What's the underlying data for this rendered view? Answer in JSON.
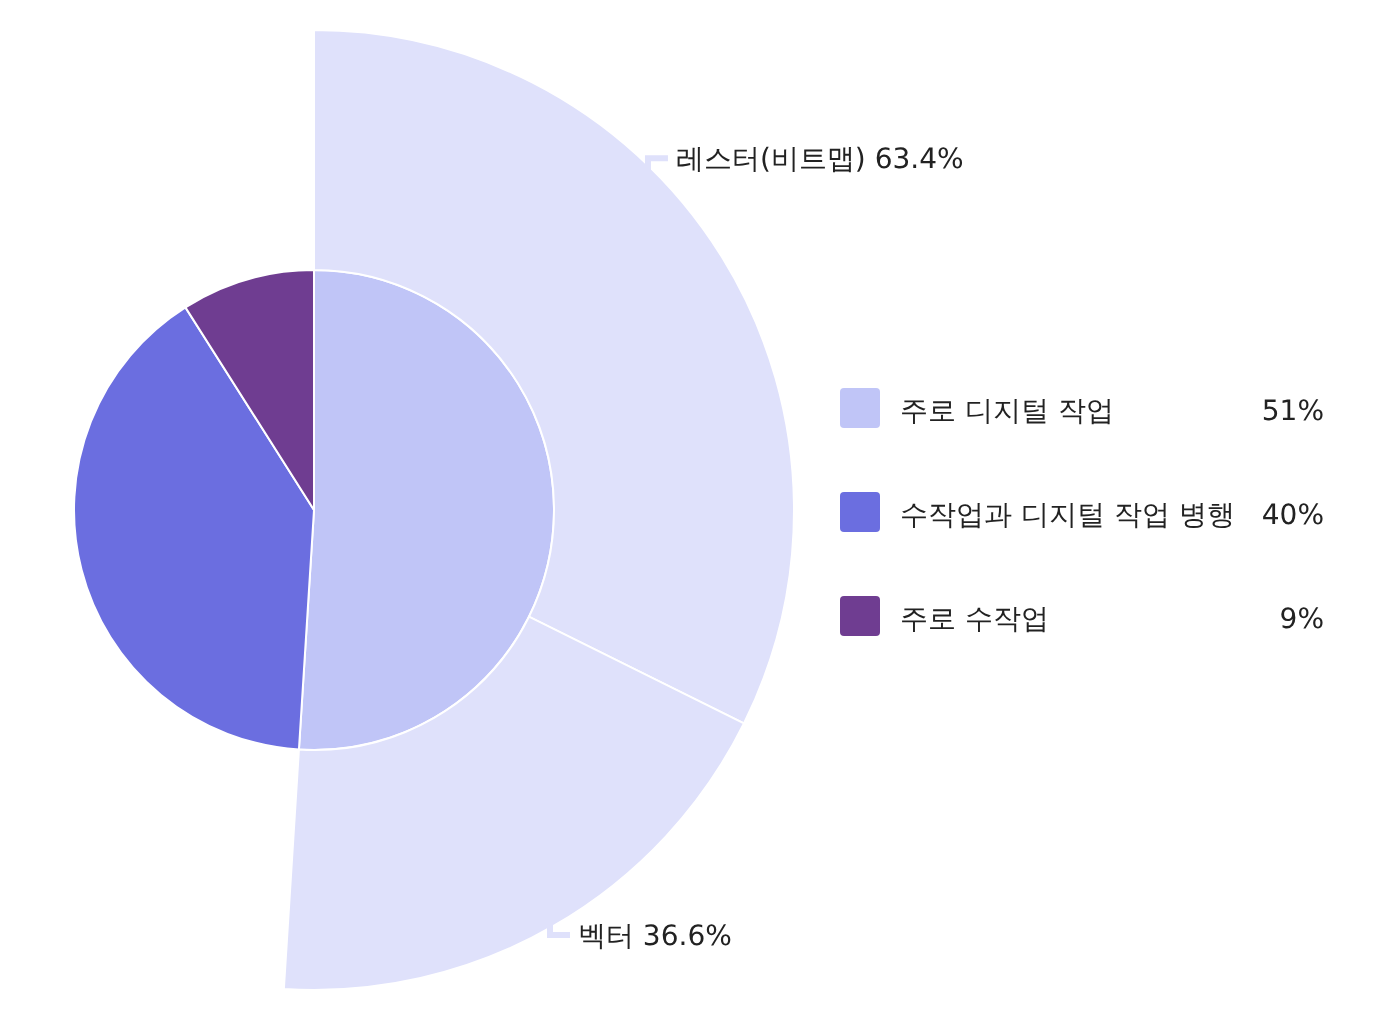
{
  "chart_data": [
    {
      "type": "pie",
      "categories": [
        "주로 디지털 작업",
        "수작업과 디지털 작업 병행",
        "주로 수작업"
      ],
      "values": [
        51,
        40,
        9
      ],
      "colors": [
        "#c0c5f7",
        "#6b6ee0",
        "#6f3d91"
      ],
      "value_labels": [
        "51%",
        "40%",
        "9%"
      ],
      "legend": "right"
    },
    {
      "type": "donut",
      "categories": [
        "레스터(비트맵)",
        "벡터"
      ],
      "values": [
        63.4,
        36.6
      ],
      "colors": [
        "#dfe1fb",
        "#dfe1fb"
      ],
      "value_labels": [
        "63.4%",
        "36.6%"
      ]
    }
  ]
}
